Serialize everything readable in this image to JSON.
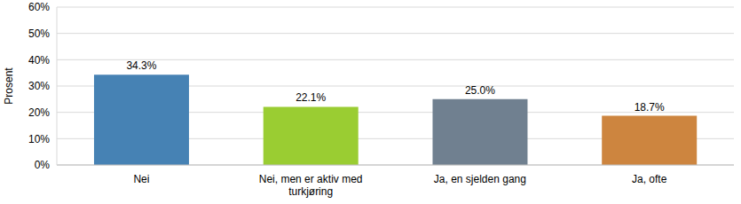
{
  "chart_data": {
    "type": "bar",
    "y_label": "Prosent",
    "categories": [
      "Nei",
      "Nei, men er aktiv med turkjøring",
      "Ja, en sjelden gang",
      "Ja, ofte"
    ],
    "values": [
      34.3,
      22.1,
      25.0,
      18.7
    ],
    "value_labels": [
      "34.3%",
      "22.1%",
      "25.0%",
      "18.7%"
    ],
    "colors": [
      "#4682b4",
      "#9acd32",
      "#708090",
      "#cd853f"
    ],
    "ylim": [
      0,
      60
    ],
    "yticks": [
      {
        "value": 0,
        "label": "0%"
      },
      {
        "value": 10,
        "label": "10%"
      },
      {
        "value": 20,
        "label": "20%"
      },
      {
        "value": 30,
        "label": "30%"
      },
      {
        "value": 40,
        "label": "40%"
      },
      {
        "value": 50,
        "label": "50%"
      },
      {
        "value": 60,
        "label": "60%"
      }
    ],
    "grid": true,
    "data_labels": true
  }
}
